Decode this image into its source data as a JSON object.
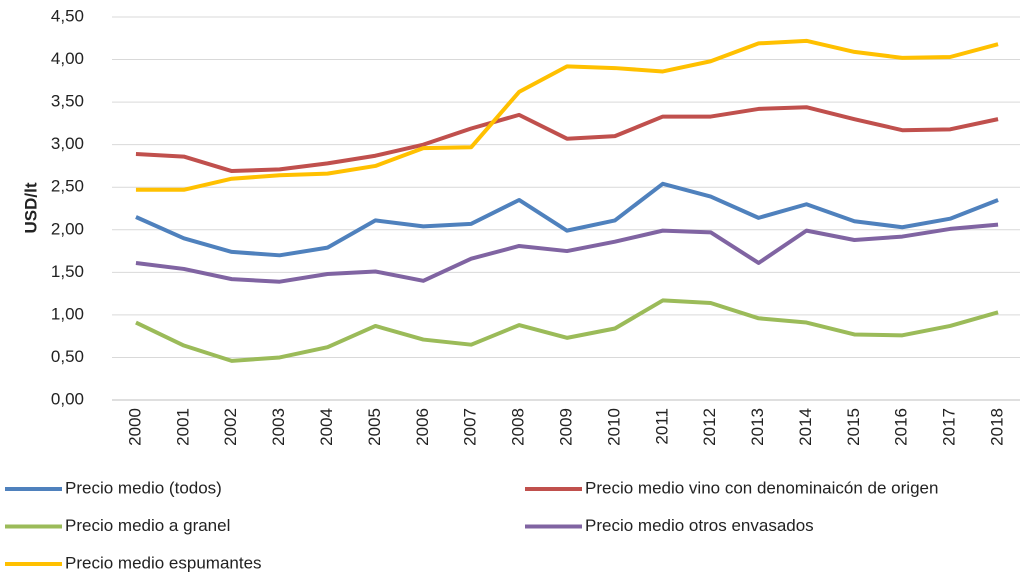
{
  "chart_data": {
    "type": "line",
    "y_label": "USD/lt",
    "categories": [
      "2000",
      "2001",
      "2002",
      "2003",
      "2004",
      "2005",
      "2006",
      "2007",
      "2008",
      "2009",
      "2010",
      "2011",
      "2012",
      "2013",
      "2014",
      "2015",
      "2016",
      "2017",
      "2018"
    ],
    "series": [
      {
        "name": "Precio  medio (todos)",
        "color": "#4f81bd",
        "values": [
          2.15,
          1.9,
          1.74,
          1.7,
          1.79,
          2.11,
          2.04,
          2.07,
          2.35,
          1.99,
          2.11,
          2.54,
          2.39,
          2.14,
          2.3,
          2.1,
          2.03,
          2.13,
          2.35
        ]
      },
      {
        "name": "Precio medio vino con denominaicón de origen",
        "color": "#c0504d",
        "values": [
          2.89,
          2.86,
          2.69,
          2.71,
          2.78,
          2.87,
          3.0,
          3.19,
          3.35,
          3.07,
          3.1,
          3.33,
          3.33,
          3.42,
          3.44,
          3.3,
          3.17,
          3.18,
          3.3
        ]
      },
      {
        "name": "Precio medio a granel",
        "color": "#9bbb59",
        "values": [
          0.91,
          0.64,
          0.46,
          0.5,
          0.62,
          0.87,
          0.71,
          0.65,
          0.88,
          0.73,
          0.84,
          1.17,
          1.14,
          0.96,
          0.91,
          0.77,
          0.76,
          0.87,
          1.03
        ]
      },
      {
        "name": "Precio medio otros envasados",
        "color": "#8064a2",
        "values": [
          1.61,
          1.54,
          1.42,
          1.39,
          1.48,
          1.51,
          1.4,
          1.66,
          1.81,
          1.75,
          1.86,
          1.99,
          1.97,
          1.61,
          1.99,
          1.88,
          1.92,
          2.01,
          2.06
        ]
      },
      {
        "name": "Precio medio espumantes",
        "color": "#ffc000",
        "values": [
          2.47,
          2.47,
          2.6,
          2.64,
          2.66,
          2.75,
          2.96,
          2.97,
          3.62,
          3.92,
          3.9,
          3.86,
          3.98,
          4.19,
          4.22,
          4.09,
          4.02,
          4.03,
          4.18
        ]
      }
    ],
    "ylim": [
      0,
      4.5
    ],
    "yticks": [
      {
        "value": 0,
        "label": "0,00"
      },
      {
        "value": 0.5,
        "label": "0,50"
      },
      {
        "value": 1,
        "label": "1,00"
      },
      {
        "value": 1.5,
        "label": "1,50"
      },
      {
        "value": 2,
        "label": "2,00"
      },
      {
        "value": 2.5,
        "label": "2,50"
      },
      {
        "value": 3,
        "label": "3,00"
      },
      {
        "value": 3.5,
        "label": "3,50"
      },
      {
        "value": 4,
        "label": "4,00"
      },
      {
        "value": 4.5,
        "label": "4,50"
      }
    ],
    "grid": true
  }
}
